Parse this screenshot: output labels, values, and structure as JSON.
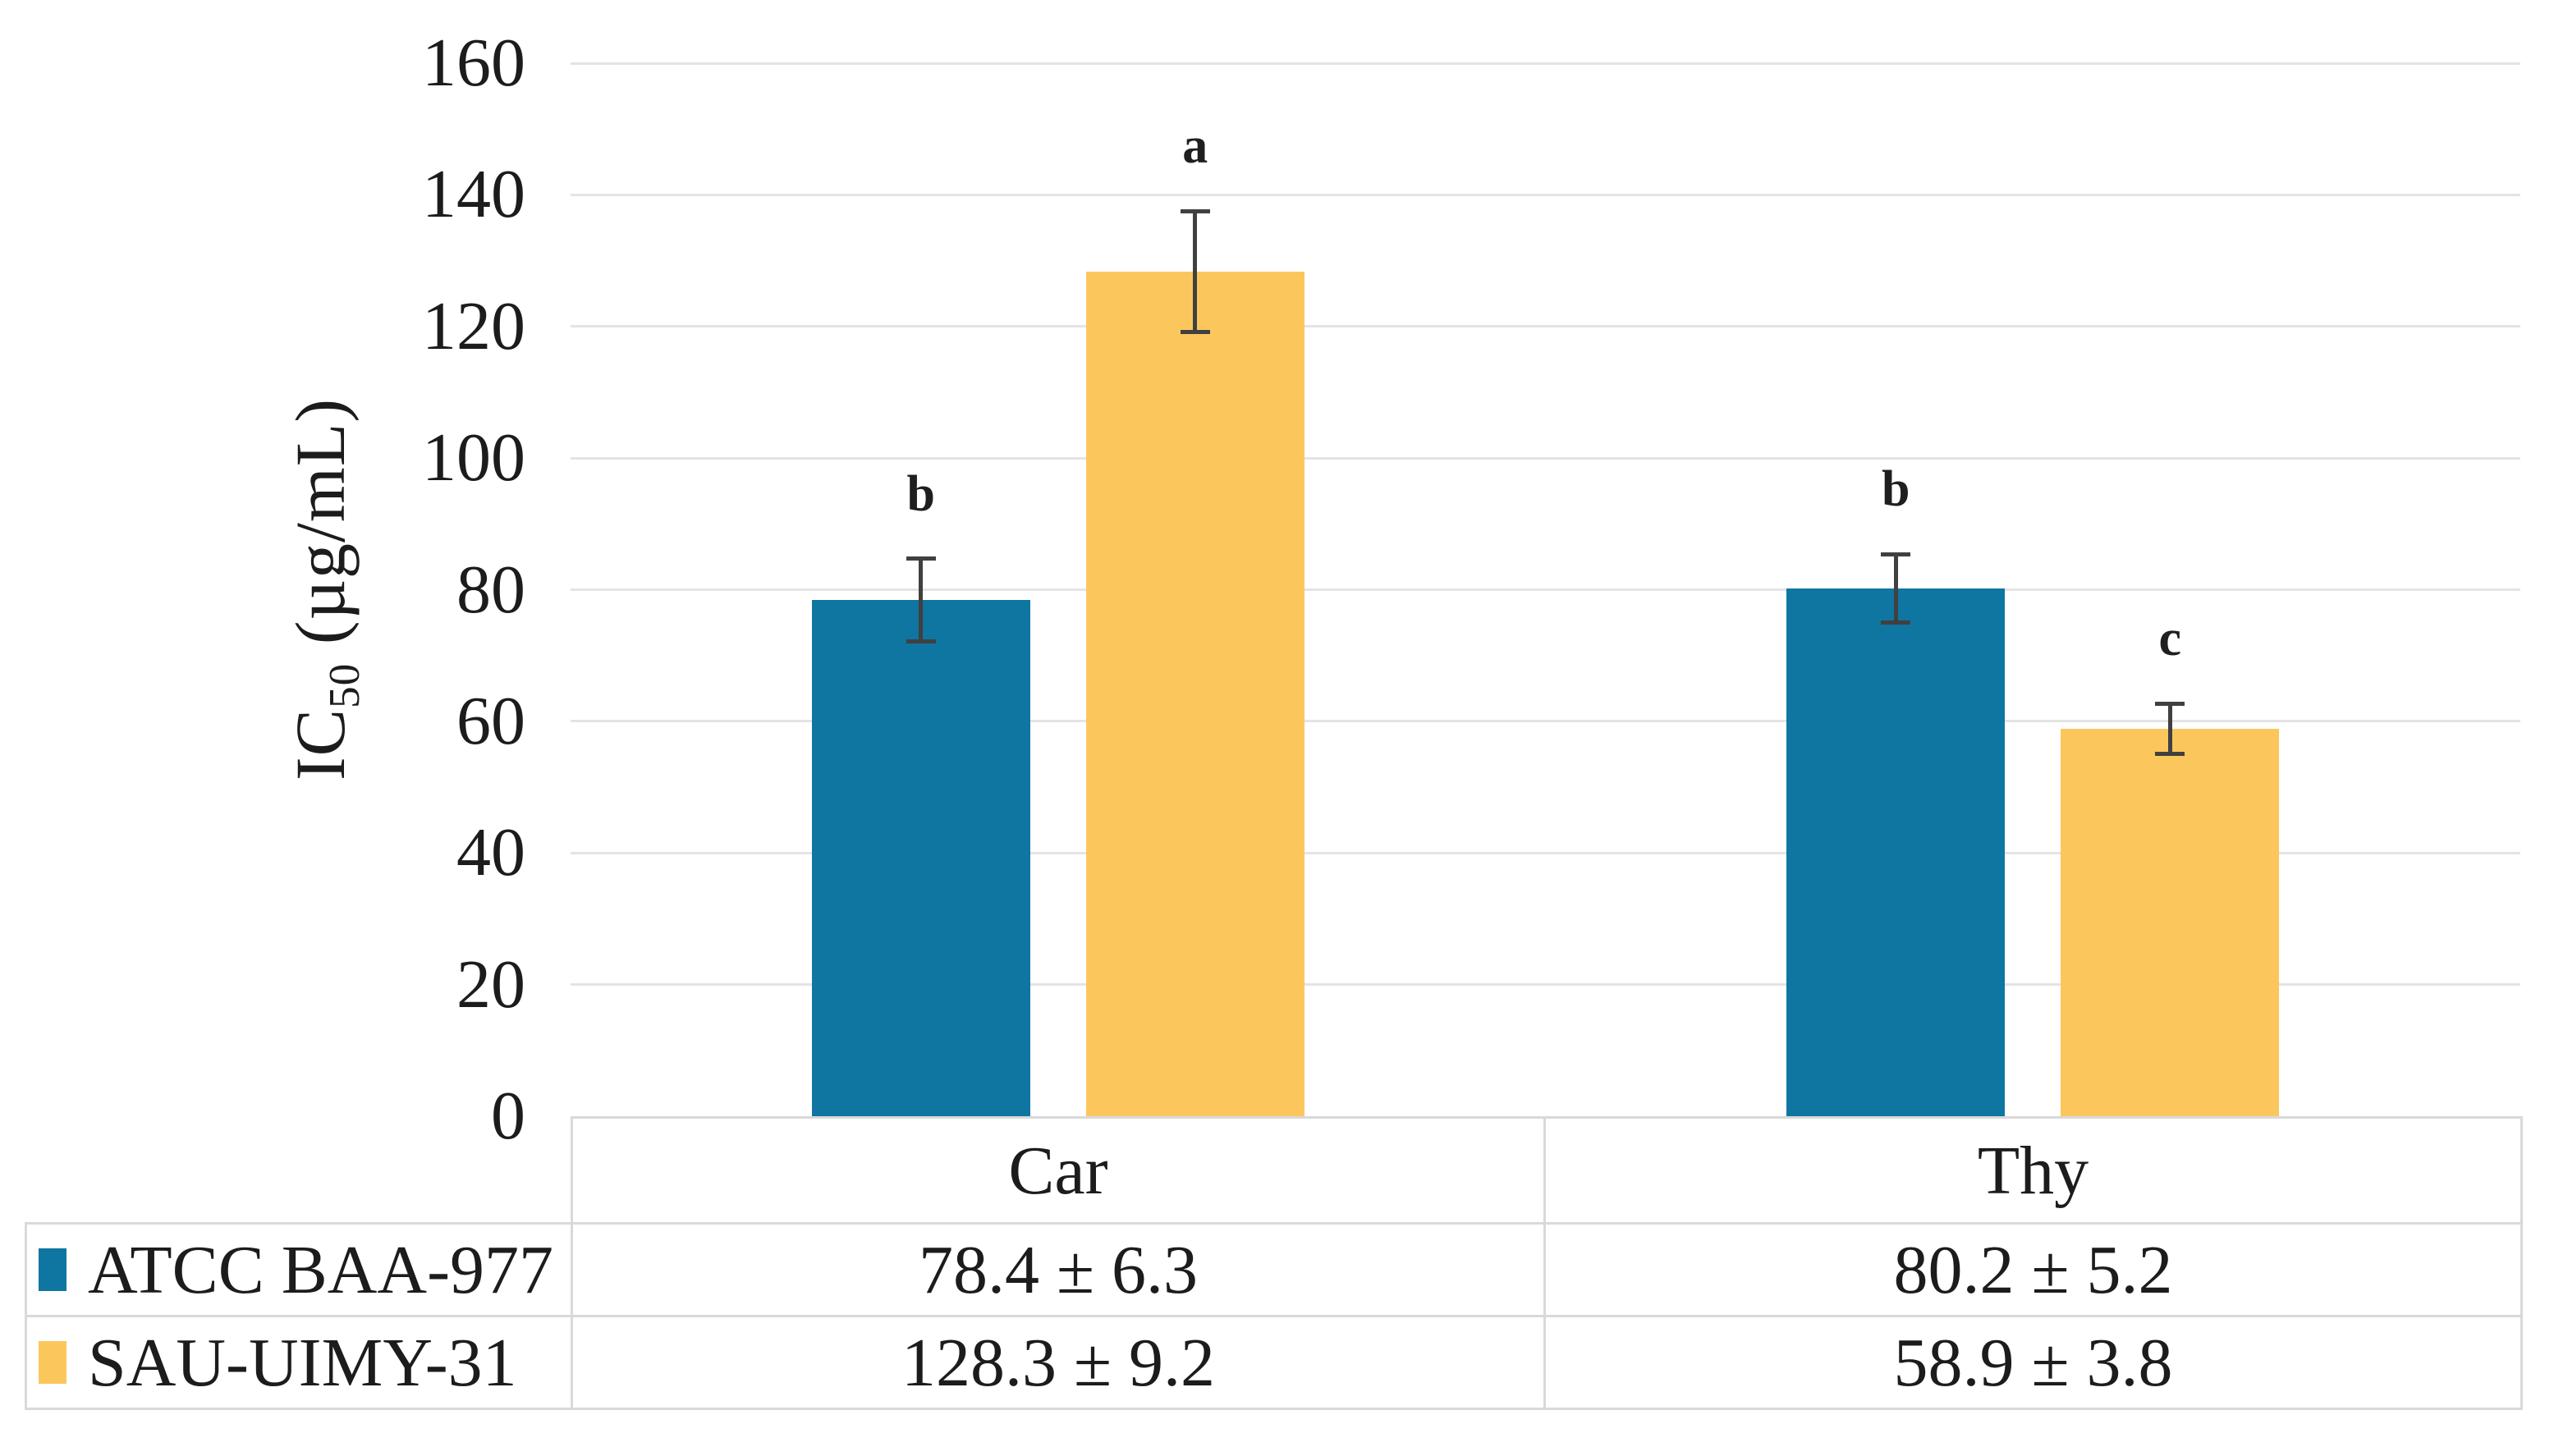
{
  "chart_data": {
    "type": "bar",
    "title": "",
    "ylabel": "IC50 (µg/mL)",
    "ylabel_parts": {
      "main": "IC",
      "sub": "50",
      "unit": " (µg/mL)"
    },
    "ylim": [
      0,
      160
    ],
    "ytick_step": 20,
    "yticks": [
      0,
      20,
      40,
      60,
      80,
      100,
      120,
      140,
      160
    ],
    "grid": true,
    "legend_position": "data-table-left",
    "categories": [
      "Car",
      "Thy"
    ],
    "series": [
      {
        "name": "ATCC BAA-977",
        "color": "#0F76A2",
        "values": [
          78.4,
          80.2
        ],
        "errors": [
          6.3,
          5.2
        ],
        "sig_letters": [
          "b",
          "b"
        ],
        "cell_labels": [
          "78.4 ± 6.3",
          "80.2 ± 5.2"
        ]
      },
      {
        "name": "SAU-UIMY-31",
        "color": "#FBC75D",
        "values": [
          128.3,
          58.9
        ],
        "errors": [
          9.2,
          3.8
        ],
        "sig_letters": [
          "a",
          "c"
        ],
        "cell_labels": [
          "128.3 ± 9.2",
          "58.9 ± 3.8"
        ]
      }
    ],
    "error_bar_color": "#404040",
    "gridline_color": "#E4E4E4",
    "table_border_color": "#D9D9D9"
  }
}
